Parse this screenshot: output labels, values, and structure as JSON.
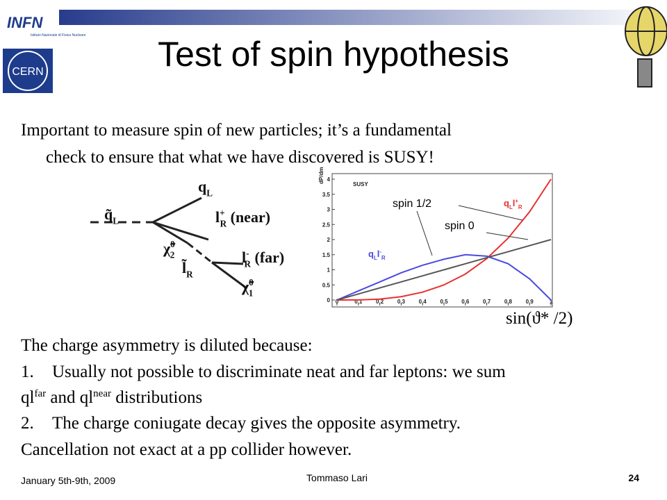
{
  "header": {
    "title": "Test of spin hypothesis",
    "logos": {
      "infn": "INFN",
      "infn_caption": "Istituto Nazionale di Fisica Nucleare",
      "cern": "CERN"
    }
  },
  "intro": [
    "Important to measure spin of new particles; it’s a fundamental",
    "check to ensure that what we have discovered is SUSY!"
  ],
  "diagram": {
    "labels": [
      {
        "base": "q̃",
        "sub": "L"
      },
      {
        "base": "q",
        "sub": "L"
      },
      {
        "base": "l",
        "sub": "R",
        "sup": "+",
        "tail": "(near)"
      },
      {
        "base": "χ̃",
        "sub": "2",
        "sup": "0"
      },
      {
        "base": "l̃",
        "sub": "R"
      },
      {
        "base": "l",
        "sub": "R",
        "sup": "-",
        "tail": "(far)"
      },
      {
        "base": "χ̃",
        "sub": "1",
        "sup": "0"
      }
    ]
  },
  "chart_data": {
    "type": "line",
    "tag": "SUSY",
    "y_label": "dP/dm",
    "x_label": "sin(ϑ* /2)",
    "x": [
      0,
      0.1,
      0.2,
      0.3,
      0.4,
      0.5,
      0.6,
      0.7,
      0.8,
      0.9,
      1
    ],
    "xlim": [
      0,
      1
    ],
    "ylim": [
      0,
      4
    ],
    "xticks": [
      0,
      0.1,
      0.2,
      0.3,
      0.4,
      0.5,
      0.6,
      0.7,
      0.8,
      0.9,
      1
    ],
    "yticks": [
      0,
      0.5,
      1,
      1.5,
      2,
      2.5,
      3,
      3.5,
      4
    ],
    "series": [
      {
        "color": "#e83030",
        "values": [
          0,
          0.004,
          0.03,
          0.11,
          0.26,
          0.5,
          0.86,
          1.37,
          2.05,
          2.92,
          4
        ]
      },
      {
        "color": "#4a4ae0",
        "values": [
          0,
          0.3,
          0.6,
          0.9,
          1.15,
          1.35,
          1.5,
          1.45,
          1.2,
          0.7,
          0
        ]
      },
      {
        "color": "#555555",
        "values": [
          0,
          0.2,
          0.4,
          0.6,
          0.8,
          1,
          1.2,
          1.4,
          1.6,
          1.8,
          2
        ]
      }
    ],
    "annotations": [
      "spin 1/2",
      "spin 0"
    ],
    "curve_labels": [
      {
        "base": "q",
        "sub": "L",
        "base2": "l",
        "sub2": "R",
        "sup2": "+"
      },
      {
        "base": "q",
        "sub": "L",
        "base2": "l",
        "sub2": "R",
        "sup2": "-"
      }
    ]
  },
  "body": {
    "lead": "The charge asymmetry is diluted because:",
    "item1_num": "1.",
    "item1": "Usually not possible to discriminate neat and far leptons: we sum",
    "item1_b": [
      "ql",
      "far",
      " and ql",
      "near",
      " distributions"
    ],
    "item2_num": "2.",
    "item2": "The charge coniugate decay gives the opposite asymmetry.",
    "item2_b": "Cancellation not exact at a pp collider however."
  },
  "footer": {
    "date": "January 5th-9th, 2009",
    "author": "Tommaso Lari",
    "page": "24"
  }
}
